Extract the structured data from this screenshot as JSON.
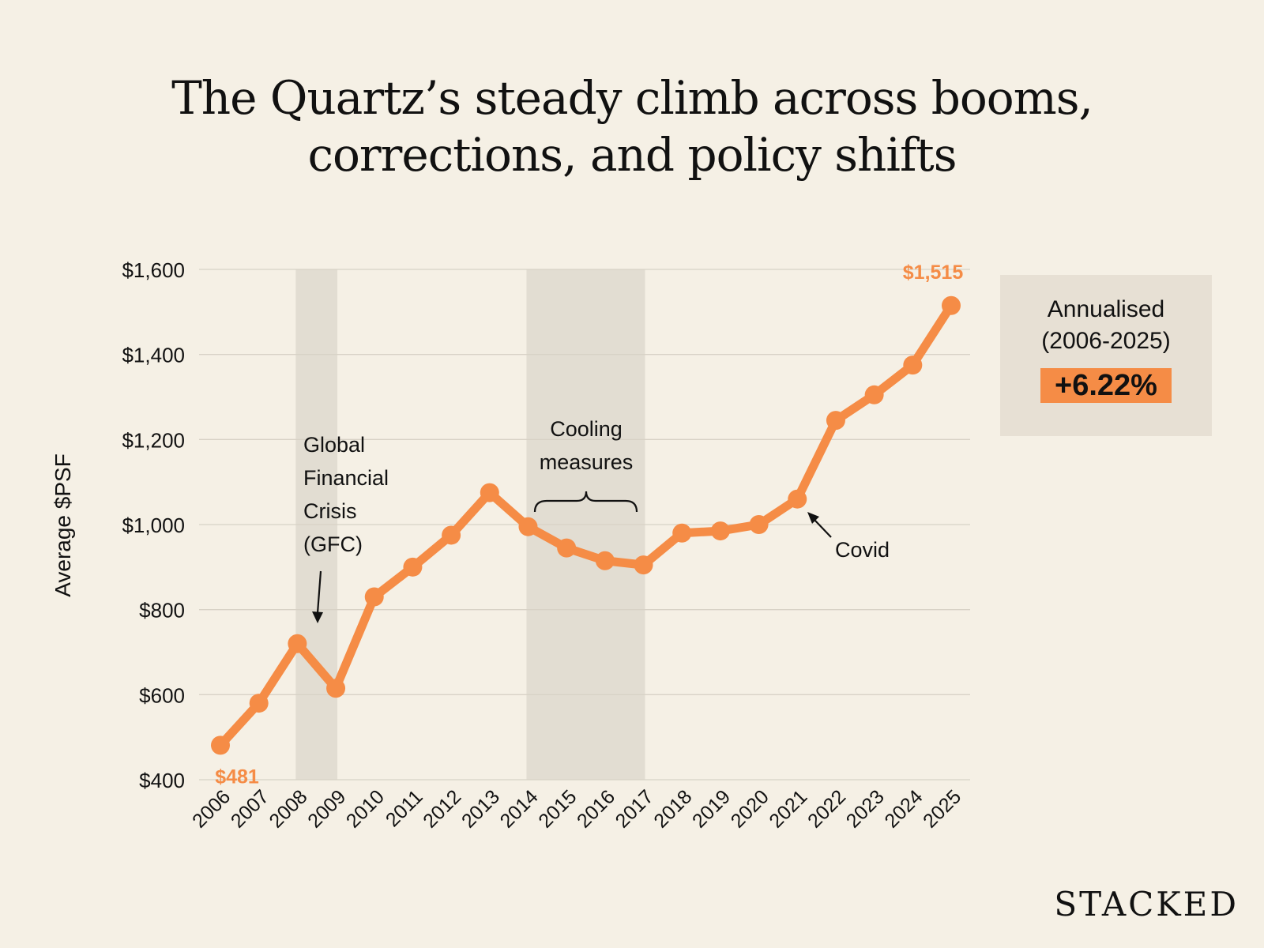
{
  "title": {
    "line1": "The Quartz’s steady climb across booms,",
    "line2": "corrections, and policy shifts"
  },
  "stat": {
    "label_line1": "Annualised",
    "label_line2": "(2006-2025)",
    "value": "+6.22%"
  },
  "brand": "STACKED",
  "colors": {
    "background": "#f5f0e5",
    "line": "#f58c46",
    "shade": "#e2ddd2",
    "grid": "#d8d2c6"
  },
  "chart_data": {
    "type": "line",
    "ylabel": "Average $PSF",
    "xlabel": "",
    "ylim": [
      400,
      1600
    ],
    "yticks": [
      400,
      600,
      800,
      1000,
      1200,
      1400,
      1600
    ],
    "ytick_labels": [
      "$400",
      "$600",
      "$800",
      "$1,000",
      "$1,200",
      "$1,400",
      "$1,600"
    ],
    "grid": true,
    "categories": [
      "2006",
      "2007",
      "2008",
      "2009",
      "2010",
      "2011",
      "2012",
      "2013",
      "2014",
      "2015",
      "2016",
      "2017",
      "2018",
      "2019",
      "2020",
      "2021",
      "2022",
      "2023",
      "2024",
      "2025"
    ],
    "series": [
      {
        "values": [
          481,
          580,
          720,
          615,
          830,
          900,
          975,
          1075,
          995,
          945,
          915,
          905,
          980,
          985,
          1000,
          1060,
          1245,
          1305,
          1375,
          1515
        ]
      }
    ],
    "data_labels": [
      {
        "category": "2006",
        "text": "$481"
      },
      {
        "category": "2025",
        "text": "$1,515"
      }
    ],
    "shaded_ranges": [
      {
        "from": "2008",
        "to": "2009"
      },
      {
        "from": "2014",
        "to": "2017"
      }
    ],
    "annotations": [
      {
        "text_lines": [
          "Global",
          "Financial",
          "Crisis",
          "(GFC)"
        ]
      },
      {
        "text_lines": [
          "Cooling",
          "measures"
        ]
      },
      {
        "text_lines": [
          "Covid"
        ]
      }
    ]
  }
}
